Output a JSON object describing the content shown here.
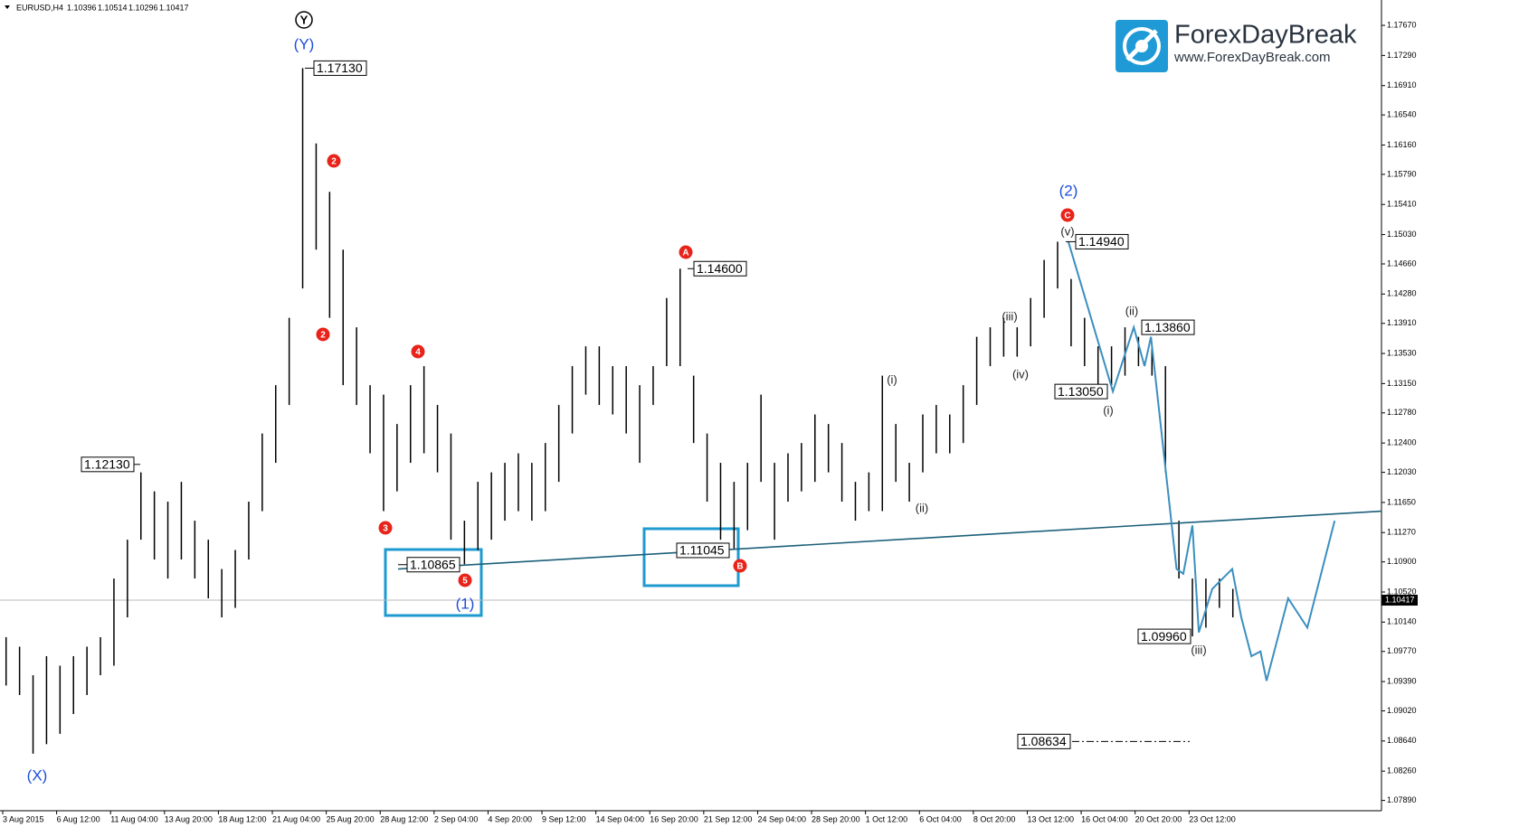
{
  "header": {
    "symbol": "EURUSD,H4",
    "prices": [
      "1.10396",
      "1.10514",
      "1.10296",
      "1.10417"
    ]
  },
  "logo": {
    "name": "ForexDayBreak",
    "url": "www.ForexDayBreak.com"
  },
  "chart_data": {
    "type": "ohlc",
    "color": "#000000",
    "xlim": [
      0,
      409.1
    ],
    "xticks": [
      {
        "value": 0,
        "label": "3 Aug 2015"
      },
      {
        "value": 16,
        "label": "6 Aug 12:00"
      },
      {
        "value": 32,
        "label": "11 Aug 04:00"
      },
      {
        "value": 48,
        "label": "13 Aug 20:00"
      },
      {
        "value": 64,
        "label": "18 Aug 12:00"
      },
      {
        "value": 80,
        "label": "21 Aug 04:00"
      },
      {
        "value": 96,
        "label": "25 Aug 20:00"
      },
      {
        "value": 112,
        "label": "28 Aug 12:00"
      },
      {
        "value": 128,
        "label": "2 Sep 04:00"
      },
      {
        "value": 144,
        "label": "4 Sep 20:00"
      },
      {
        "value": 160,
        "label": "9 Sep 12:00"
      },
      {
        "value": 176,
        "label": "14 Sep 04:00"
      },
      {
        "value": 192,
        "label": "16 Sep 20:00"
      },
      {
        "value": 208,
        "label": "21 Sep 12:00"
      },
      {
        "value": 224,
        "label": "24 Sep 04:00"
      },
      {
        "value": 240,
        "label": "28 Sep 20:00"
      },
      {
        "value": 256,
        "label": "1 Oct 12:00"
      },
      {
        "value": 272,
        "label": "6 Oct 04:00"
      },
      {
        "value": 288,
        "label": "8 Oct 20:00"
      },
      {
        "value": 304,
        "label": "13 Oct 12:00"
      },
      {
        "value": 320,
        "label": "16 Oct 04:00"
      },
      {
        "value": 336,
        "label": "20 Oct 20:00"
      },
      {
        "value": 352,
        "label": "23 Oct 12:00"
      }
    ],
    "ylim": [
      1.0776,
      1.1799
    ],
    "yticks": [
      {
        "value": 1.1767,
        "label": "1.17670"
      },
      {
        "value": 1.1729,
        "label": "1.17290"
      },
      {
        "value": 1.1691,
        "label": "1.16910"
      },
      {
        "value": 1.1654,
        "label": "1.16540"
      },
      {
        "value": 1.1616,
        "label": "1.16160"
      },
      {
        "value": 1.1579,
        "label": "1.15790"
      },
      {
        "value": 1.1541,
        "label": "1.15410"
      },
      {
        "value": 1.1503,
        "label": "1.15030"
      },
      {
        "value": 1.1466,
        "label": "1.14660"
      },
      {
        "value": 1.1428,
        "label": "1.14280"
      },
      {
        "value": 1.1391,
        "label": "1.13910"
      },
      {
        "value": 1.1353,
        "label": "1.13530"
      },
      {
        "value": 1.1315,
        "label": "1.13150"
      },
      {
        "value": 1.1278,
        "label": "1.12780"
      },
      {
        "value": 1.124,
        "label": "1.12400"
      },
      {
        "value": 1.1203,
        "label": "1.12030"
      },
      {
        "value": 1.1165,
        "label": "1.11650"
      },
      {
        "value": 1.1127,
        "label": "1.11270"
      },
      {
        "value": 1.109,
        "label": "1.10900"
      },
      {
        "value": 1.1052,
        "label": "1.10520"
      },
      {
        "value": 1.1014,
        "label": "1.10140"
      },
      {
        "value": 1.0977,
        "label": "1.09770"
      },
      {
        "value": 1.0939,
        "label": "1.09390"
      },
      {
        "value": 1.0902,
        "label": "1.09020"
      },
      {
        "value": 1.0864,
        "label": "1.08640"
      },
      {
        "value": 1.0826,
        "label": "1.08260"
      },
      {
        "value": 1.0789,
        "label": "1.07890"
      }
    ],
    "x": [
      1,
      5,
      9,
      13,
      17,
      21,
      25,
      29,
      33,
      37,
      41,
      45,
      49,
      53,
      57,
      61,
      65,
      69,
      73,
      77,
      81,
      85,
      89,
      93,
      97,
      101,
      105,
      109,
      113,
      117,
      121,
      125,
      129,
      133,
      137,
      141,
      145,
      149,
      153,
      157,
      161,
      165,
      169,
      173,
      177,
      181,
      185,
      189,
      193,
      197,
      201,
      205,
      209,
      213,
      217,
      221,
      225,
      229,
      233,
      237,
      241,
      245,
      249,
      253,
      257,
      261,
      265,
      269,
      273,
      277,
      281,
      285,
      289,
      293,
      297,
      301,
      305,
      309,
      313,
      317,
      321,
      325,
      329,
      333,
      337,
      341,
      345,
      349,
      353,
      357,
      361,
      365
    ],
    "high": [
      1.0995,
      1.0983,
      1.0947,
      1.0971,
      1.0959,
      1.0971,
      1.0983,
      1.0995,
      1.1069,
      1.1118,
      1.1203,
      1.1179,
      1.1166,
      1.1191,
      1.1142,
      1.1118,
      1.1081,
      1.1105,
      1.1166,
      1.1252,
      1.1313,
      1.1398,
      1.1713,
      1.1618,
      1.1557,
      1.1484,
      1.1386,
      1.1313,
      1.1301,
      1.1264,
      1.1313,
      1.1337,
      1.1288,
      1.1252,
      1.1142,
      1.1191,
      1.1203,
      1.1215,
      1.1227,
      1.1215,
      1.124,
      1.1288,
      1.1337,
      1.1362,
      1.1362,
      1.1337,
      1.1337,
      1.1313,
      1.1337,
      1.1423,
      1.146,
      1.1325,
      1.1252,
      1.1215,
      1.1191,
      1.1215,
      1.1301,
      1.1215,
      1.1227,
      1.124,
      1.1276,
      1.1264,
      1.124,
      1.1191,
      1.1203,
      1.1325,
      1.1264,
      1.1215,
      1.1276,
      1.1288,
      1.1276,
      1.1313,
      1.1374,
      1.1386,
      1.1398,
      1.1386,
      1.1423,
      1.1471,
      1.1494,
      1.1447,
      1.1398,
      1.1362,
      1.1362,
      1.1386,
      1.1374,
      1.1362,
      1.1337,
      1.1142,
      1.1069,
      1.1069,
      1.1069,
      1.1056
    ],
    "low": [
      1.0934,
      1.0922,
      1.0848,
      1.086,
      1.0873,
      1.0898,
      1.0922,
      1.0947,
      1.0959,
      1.102,
      1.1118,
      1.1093,
      1.1069,
      1.1093,
      1.1069,
      1.1044,
      1.102,
      1.1032,
      1.1093,
      1.1154,
      1.1215,
      1.1288,
      1.1435,
      1.1484,
      1.1398,
      1.1313,
      1.1288,
      1.1227,
      1.1154,
      1.1179,
      1.1215,
      1.1227,
      1.1203,
      1.1118,
      1.1087,
      1.1105,
      1.1118,
      1.1142,
      1.1154,
      1.1142,
      1.1154,
      1.1191,
      1.1252,
      1.1301,
      1.1288,
      1.1276,
      1.1252,
      1.1215,
      1.1288,
      1.1337,
      1.1337,
      1.124,
      1.1166,
      1.1118,
      1.1105,
      1.113,
      1.1191,
      1.1118,
      1.1166,
      1.1179,
      1.1191,
      1.1203,
      1.1166,
      1.1142,
      1.1154,
      1.1154,
      1.1191,
      1.1166,
      1.1203,
      1.1227,
      1.1227,
      1.124,
      1.1288,
      1.1337,
      1.1349,
      1.1349,
      1.1362,
      1.1398,
      1.1435,
      1.1362,
      1.1337,
      1.1305,
      1.1313,
      1.1325,
      1.1337,
      1.1325,
      1.1203,
      1.1069,
      1.0996,
      1.1007,
      1.1032,
      1.102
    ],
    "last_price": {
      "value": 1.10417,
      "label": "1.10417"
    },
    "price_labels": [
      {
        "value": 1.1713,
        "label": "1.17130"
      },
      {
        "value": 1.1213,
        "label": "1.12130"
      },
      {
        "value": 1.10865,
        "label": "1.10865"
      },
      {
        "value": 1.11045,
        "label": "1.11045"
      },
      {
        "value": 1.146,
        "label": "1.14600"
      },
      {
        "value": 1.1494,
        "label": "1.14940"
      },
      {
        "value": 1.1386,
        "label": "1.13860"
      },
      {
        "value": 1.1305,
        "label": "1.13050"
      },
      {
        "value": 1.0996,
        "label": "1.09960"
      },
      {
        "value": 1.08634,
        "label": "1.08634"
      }
    ],
    "wave": {
      "color": "#3a8fc0",
      "x": [
        316.2,
        329.4,
        335.6,
        338.8,
        340.7,
        348.3,
        350.3,
        353.0,
        354.9,
        358.9,
        364.8,
        367.5,
        370.5,
        373.2,
        375.0,
        381.4,
        387.1,
        395.2
      ],
      "values": [
        1.1494,
        1.1305,
        1.1386,
        1.1337,
        1.1374,
        1.1081,
        1.1075,
        1.1136,
        1.1001,
        1.1056,
        1.1081,
        1.102,
        1.0971,
        1.0977,
        1.094,
        1.1044,
        1.1007,
        1.1142
      ]
    },
    "trendline": {
      "color": "#1c5f7a",
      "x": [
        117.3,
        409.1
      ],
      "values": [
        1.1081,
        1.1154
      ]
    },
    "wave_labels": [
      "Y",
      "(Y)",
      "(X)",
      "(1)",
      "(2)",
      "2",
      "2",
      "3",
      "4",
      "5",
      "A",
      "B",
      "C",
      "(i)",
      "(ii)",
      "(iii)",
      "(iv)",
      "(v)",
      "(i)",
      "(ii)",
      "(iii)"
    ]
  }
}
